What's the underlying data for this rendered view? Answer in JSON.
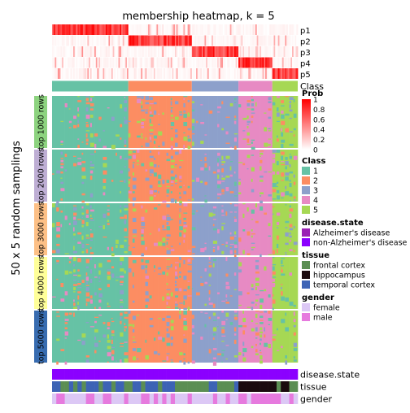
{
  "chart_data": {
    "type": "heatmap",
    "title": "membership heatmap, k = 5",
    "ylabel": "50 x 5 random samplings",
    "top_rows": [
      "p1",
      "p2",
      "p3",
      "p4",
      "p5"
    ],
    "class_row_label": "Class",
    "row_slices": [
      "top 1000 rows",
      "top 2000 rows",
      "top 3000 rows",
      "top 4000 rows",
      "top 5000 rows"
    ],
    "slice_colors": [
      "#8DD37F",
      "#BEAED4",
      "#FDC086",
      "#FFFF99",
      "#386CB0"
    ],
    "class_groups": [
      {
        "class": "1",
        "samples": 18
      },
      {
        "class": "2",
        "samples": 15
      },
      {
        "class": "3",
        "samples": 11
      },
      {
        "class": "4",
        "samples": 8
      },
      {
        "class": "5",
        "samples": 6
      }
    ],
    "bottom_annotations": [
      "disease.state",
      "tissue",
      "gender"
    ],
    "prob_legend": {
      "title": "Prob",
      "ticks": [
        "1",
        "0.8",
        "0.6",
        "0.4",
        "0.2",
        "0"
      ],
      "low_color": "#FFFFFF",
      "high_color": "#FF0000"
    },
    "legends": [
      {
        "title": "Class",
        "items": [
          {
            "label": "1",
            "color": "#66C2A5"
          },
          {
            "label": "2",
            "color": "#FC8D62"
          },
          {
            "label": "3",
            "color": "#8DA0CB"
          },
          {
            "label": "4",
            "color": "#E78AC3"
          },
          {
            "label": "5",
            "color": "#A6D854"
          }
        ]
      },
      {
        "title": "disease.state",
        "items": [
          {
            "label": "Alzheimer's disease",
            "color": "#9A22B5"
          },
          {
            "label": "non-Alzheimer's disease",
            "color": "#8B00FF"
          }
        ]
      },
      {
        "title": "tissue",
        "items": [
          {
            "label": "frontal cortex",
            "color": "#5B8E53"
          },
          {
            "label": "hippocampus",
            "color": "#1A0A0E"
          },
          {
            "label": "temporal cortex",
            "color": "#3D63B5"
          }
        ]
      },
      {
        "title": "gender",
        "items": [
          {
            "label": "female",
            "color": "#DCC8F5"
          },
          {
            "label": "male",
            "color": "#E67ADE"
          }
        ]
      }
    ]
  }
}
